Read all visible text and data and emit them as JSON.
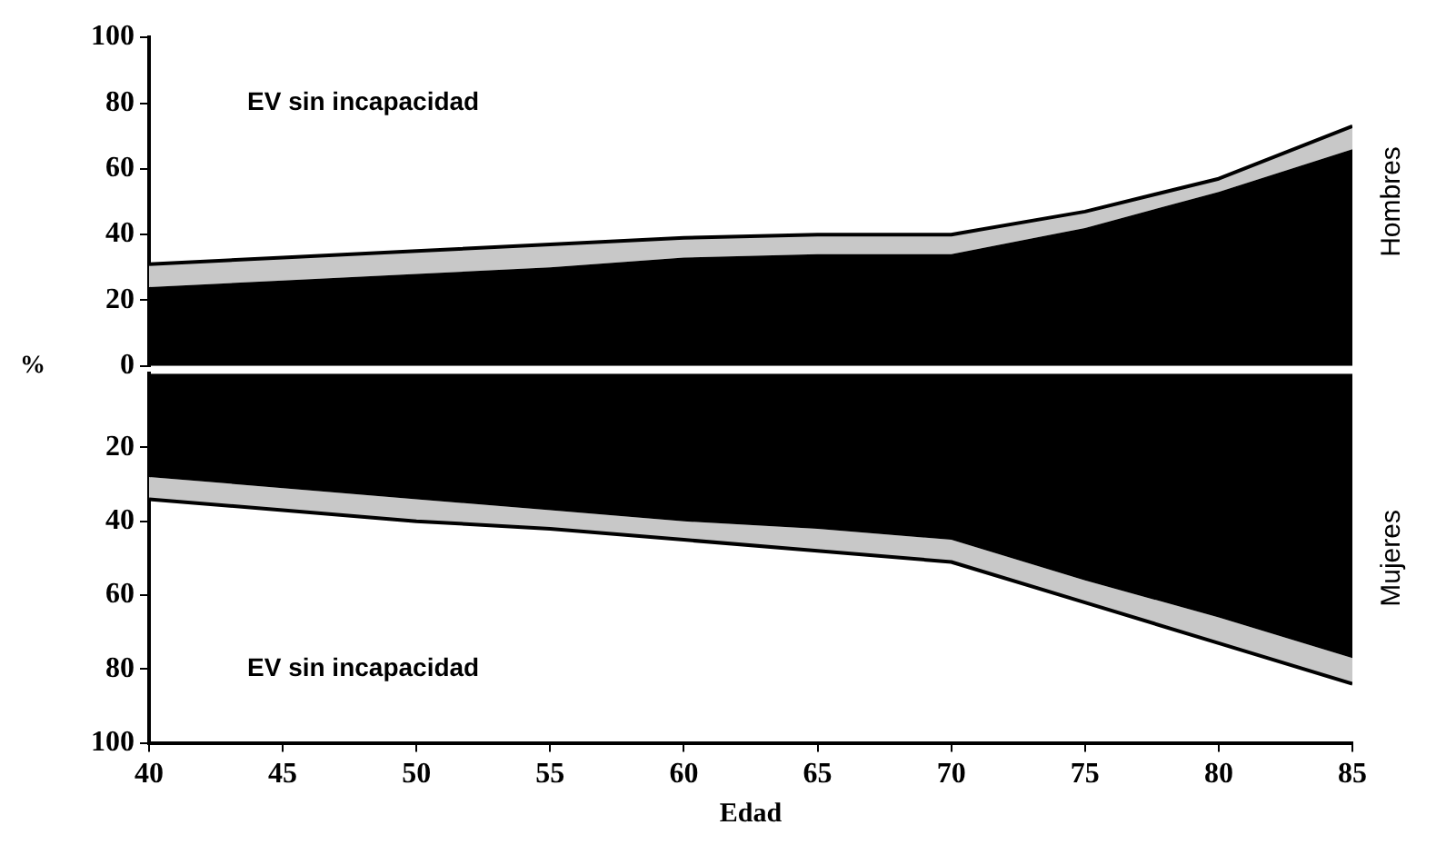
{
  "chart_data": [
    {
      "type": "area",
      "ylabel": "%",
      "stacked": true,
      "grid": false,
      "legend": false,
      "tick_labels": "y",
      "x": [
        40,
        45,
        50,
        55,
        60,
        65,
        70,
        75,
        80,
        85
      ],
      "xlim": [
        40,
        85
      ],
      "xticks": [
        40,
        45,
        50,
        55,
        60,
        65,
        70,
        75,
        80,
        85
      ],
      "ylim": [
        0,
        100
      ],
      "yticks": [
        0,
        20,
        40,
        60,
        80,
        100
      ],
      "series": [
        {
          "color": "#000000",
          "values": [
            24,
            26,
            28,
            30,
            33,
            34,
            34,
            42,
            53,
            66
          ]
        },
        {
          "color": "#c8c8c8",
          "values": [
            7,
            7,
            7,
            7,
            6,
            6,
            6,
            5,
            4,
            7
          ]
        }
      ],
      "annotations": [
        "EV sin incapacidad",
        "Hombres"
      ]
    },
    {
      "type": "area",
      "xlabel": "Edad",
      "stacked": true,
      "grid": false,
      "legend": false,
      "x": [
        40,
        45,
        50,
        55,
        60,
        65,
        70,
        75,
        80,
        85
      ],
      "xlim": [
        40,
        85
      ],
      "xticks": [
        40,
        45,
        50,
        55,
        60,
        65,
        70,
        75,
        80,
        85
      ],
      "ylim": [
        100,
        0
      ],
      "yticks": [
        20,
        40,
        60,
        80,
        100
      ],
      "series": [
        {
          "color": "#000000",
          "values": [
            28,
            31,
            34,
            37,
            40,
            42,
            45,
            56,
            66,
            77
          ]
        },
        {
          "color": "#c8c8c8",
          "values": [
            6,
            6,
            6,
            5,
            5,
            6,
            6,
            6,
            7,
            7
          ]
        }
      ],
      "annotations": [
        "EV sin incapacidad",
        "Mujeres"
      ]
    }
  ]
}
